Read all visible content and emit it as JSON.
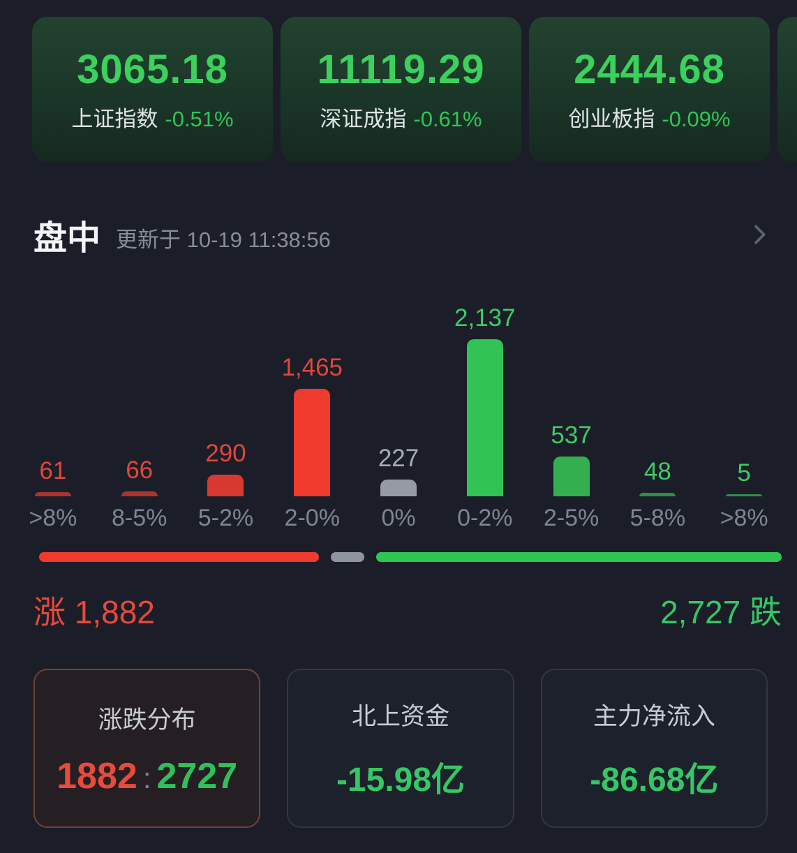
{
  "indices": [
    {
      "value": "3065.18",
      "name": "上证指数",
      "change": "-0.51%"
    },
    {
      "value": "11119.29",
      "name": "深证成指",
      "change": "-0.61%"
    },
    {
      "value": "2444.68",
      "name": "创业板指",
      "change": "-0.09%"
    }
  ],
  "section": {
    "title": "盘中",
    "updated_text": "更新于 10-19 11:38:56"
  },
  "chart_data": {
    "type": "bar",
    "categories": [
      ">8%",
      "8-5%",
      "5-2%",
      "2-0%",
      "0%",
      "0-2%",
      "2-5%",
      "5-8%",
      ">8%"
    ],
    "values": [
      61,
      66,
      290,
      1465,
      227,
      2137,
      537,
      48,
      5
    ],
    "value_labels": [
      "61",
      "66",
      "290",
      "1,465",
      "227",
      "2,137",
      "537",
      "48",
      "5"
    ],
    "bar_colors": [
      "#a83530",
      "#a83530",
      "#d63a2f",
      "#ee3b2d",
      "#969aa4",
      "#31c353",
      "#33af50",
      "#2e8f45",
      "#2e8f45"
    ],
    "label_colors": [
      "#e2463a",
      "#e2463a",
      "#e2463a",
      "#e2463a",
      "#a6abb5",
      "#3ecb66",
      "#3ecb66",
      "#3ecb66",
      "#3ecb66"
    ],
    "ylim": [
      0,
      2137
    ],
    "grid": false,
    "xlabel": "",
    "ylabel": ""
  },
  "ratio_bar": {
    "up": 1882,
    "flat": 227,
    "down": 2727,
    "colors": {
      "up": "#ee3b2d",
      "flat": "#8f95a0",
      "down": "#2fc551"
    }
  },
  "summary": {
    "up_text": "涨 1,882",
    "down_text": "2,727 跌"
  },
  "bottom_cards": {
    "distribution": {
      "title": "涨跌分布",
      "up_value": "1882",
      "separator": ":",
      "down_value": "2727"
    },
    "northbound": {
      "title": "北上资金",
      "value": "-15.98亿"
    },
    "main_inflow": {
      "title": "主力净流入",
      "value": "-86.68亿"
    }
  }
}
